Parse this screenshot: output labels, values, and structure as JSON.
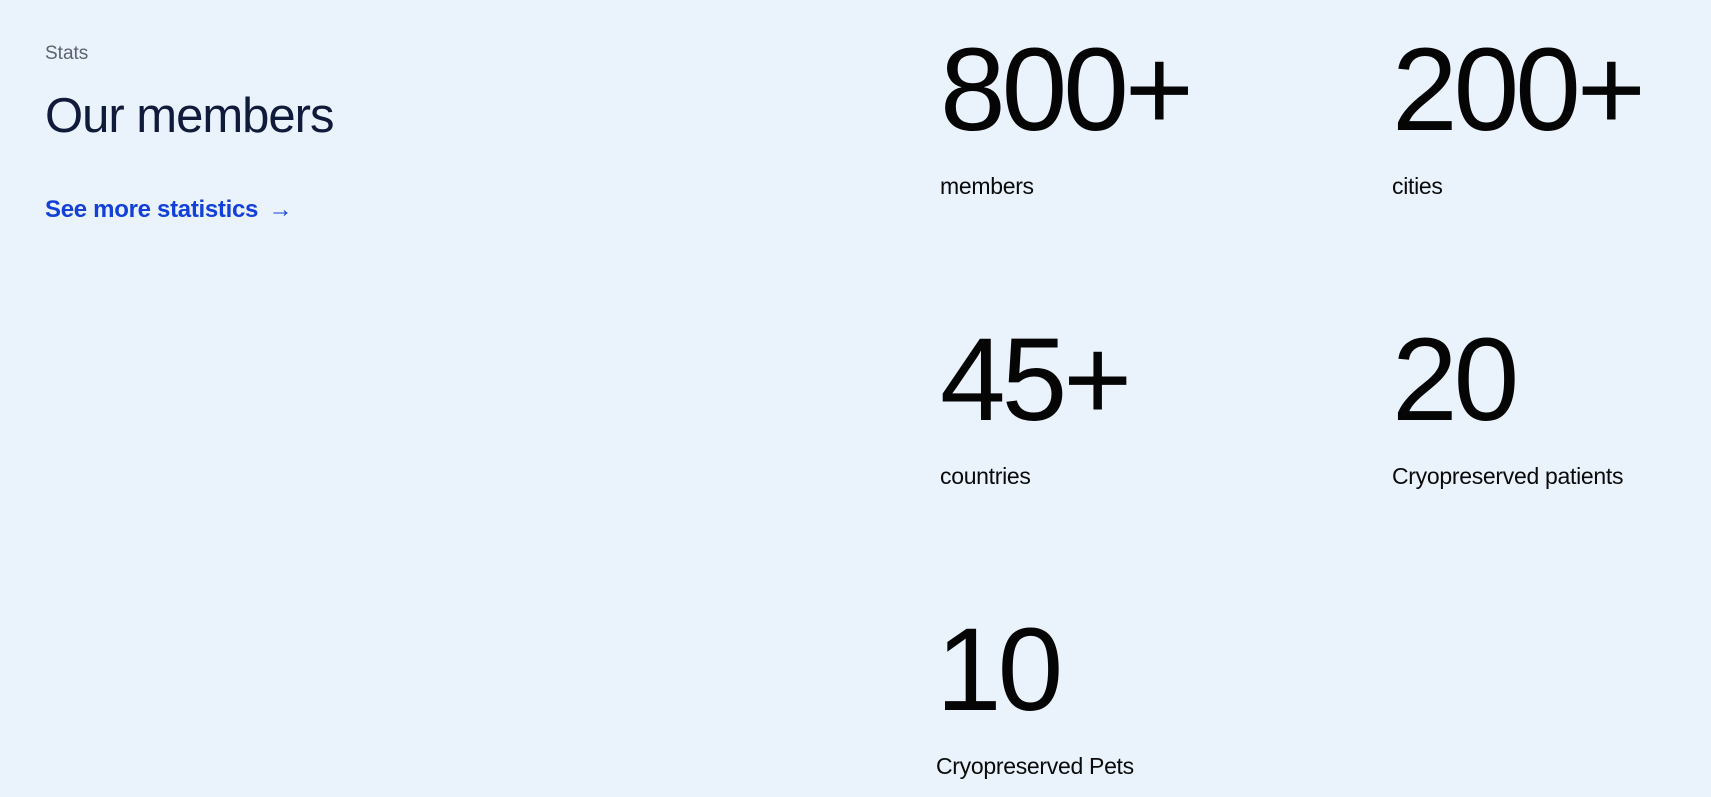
{
  "section": {
    "eyebrow": "Stats",
    "title": "Our members",
    "cta_label": "See more statistics",
    "cta_arrow": "→"
  },
  "stats": [
    {
      "value": "800+",
      "label": "members"
    },
    {
      "value": "200+",
      "label": "cities"
    },
    {
      "value": "45+",
      "label": "countries"
    },
    {
      "value": "20",
      "label": "Cryopreserved patients"
    },
    {
      "value": "10",
      "label": "Cryopreserved Pets"
    }
  ],
  "colors": {
    "background": "#eaf2fc",
    "heading": "#101a3a",
    "link": "#1240d8",
    "eyebrow": "#5c6270",
    "stat_text": "#050505"
  }
}
